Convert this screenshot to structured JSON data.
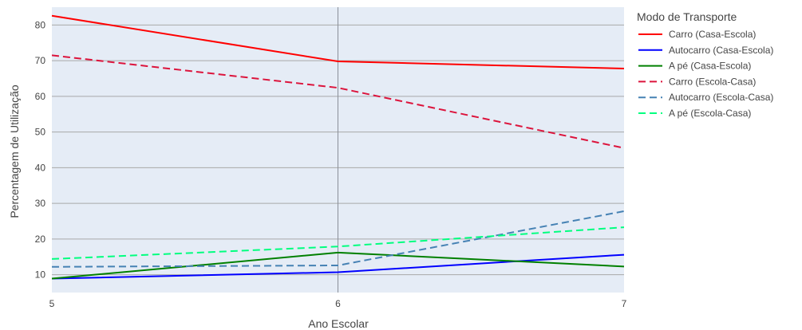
{
  "colors": {
    "plot_background": "#e5ecf6",
    "gridline": "#a9a9a9",
    "text": "#444444"
  },
  "chart_data": {
    "type": "line",
    "title": "",
    "xlabel": "Ano Escolar",
    "ylabel": "Percentagem de Utilização",
    "x": [
      5,
      6,
      7
    ],
    "x_ticks": [
      "5",
      "6",
      "7"
    ],
    "y_ticks": [
      "10",
      "20",
      "30",
      "40",
      "50",
      "60",
      "70",
      "80"
    ],
    "xlim": [
      5,
      7
    ],
    "ylim": [
      5,
      85
    ],
    "grid": true,
    "legend_title": "Modo de Transporte",
    "legend_position": "right",
    "series": [
      {
        "name": "Carro (Casa-Escola)",
        "values": [
          82.6,
          69.8,
          67.8
        ],
        "color": "#ff0000",
        "dash": "solid"
      },
      {
        "name": "Autocarro (Casa-Escola)",
        "values": [
          8.9,
          10.7,
          15.6
        ],
        "color": "#0000ff",
        "dash": "solid"
      },
      {
        "name": "A pé (Casa-Escola)",
        "values": [
          8.9,
          16.2,
          12.3
        ],
        "color": "#008000",
        "dash": "solid"
      },
      {
        "name": "Carro (Escola-Casa)",
        "values": [
          71.5,
          62.4,
          45.5
        ],
        "color": "#dc143c",
        "dash": "dash"
      },
      {
        "name": "Autocarro (Escola-Casa)",
        "values": [
          12.2,
          12.6,
          27.8
        ],
        "color": "#4682b4",
        "dash": "dash"
      },
      {
        "name": "A pé (Escola-Casa)",
        "values": [
          14.4,
          17.9,
          23.3
        ],
        "color": "#00ff7f",
        "dash": "dash"
      }
    ]
  }
}
